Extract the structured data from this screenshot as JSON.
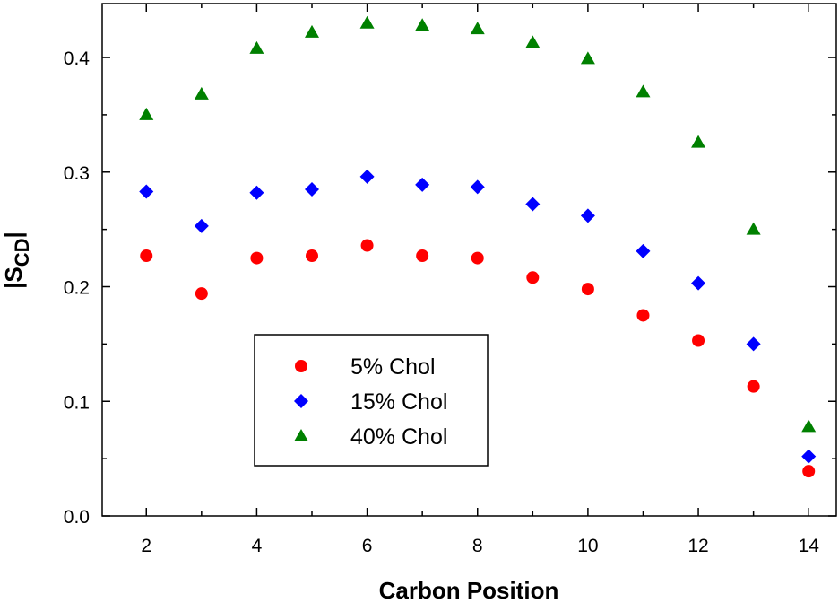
{
  "chart_data": {
    "type": "scatter",
    "xlabel": "Carbon Position",
    "ylabel_main": "|S",
    "ylabel_sub": "CD",
    "ylabel_end": "|",
    "xlim": [
      1.2,
      14.5
    ],
    "ylim": [
      0.0,
      0.447
    ],
    "x_ticks": [
      2,
      4,
      6,
      8,
      10,
      12,
      14
    ],
    "x_tick_labels": [
      "2",
      "4",
      "6",
      "8",
      "10",
      "12",
      "14"
    ],
    "x_minor_ticks": [
      3,
      5,
      7,
      9,
      11,
      13
    ],
    "y_ticks": [
      0.0,
      0.1,
      0.2,
      0.3,
      0.4
    ],
    "y_tick_labels": [
      "0.0",
      "0.1",
      "0.2",
      "0.3",
      "0.4"
    ],
    "grid": false,
    "legend_position": "lower-left",
    "x": [
      2,
      3,
      4,
      5,
      6,
      7,
      8,
      9,
      10,
      11,
      12,
      13,
      14
    ],
    "series": [
      {
        "name": "5% Chol",
        "marker": "circle",
        "color": "#ff0000",
        "values": [
          0.227,
          0.194,
          0.225,
          0.227,
          0.236,
          0.227,
          0.225,
          0.208,
          0.198,
          0.175,
          0.153,
          0.113,
          0.039
        ]
      },
      {
        "name": "15% Chol",
        "marker": "diamond",
        "color": "#0000ff",
        "values": [
          0.283,
          0.253,
          0.282,
          0.285,
          0.296,
          0.289,
          0.287,
          0.272,
          0.262,
          0.231,
          0.203,
          0.15,
          0.052
        ]
      },
      {
        "name": "40% Chol",
        "marker": "triangle",
        "color": "#008000",
        "values": [
          0.35,
          0.368,
          0.408,
          0.422,
          0.43,
          0.428,
          0.425,
          0.413,
          0.399,
          0.37,
          0.326,
          0.25,
          0.078
        ]
      }
    ]
  }
}
